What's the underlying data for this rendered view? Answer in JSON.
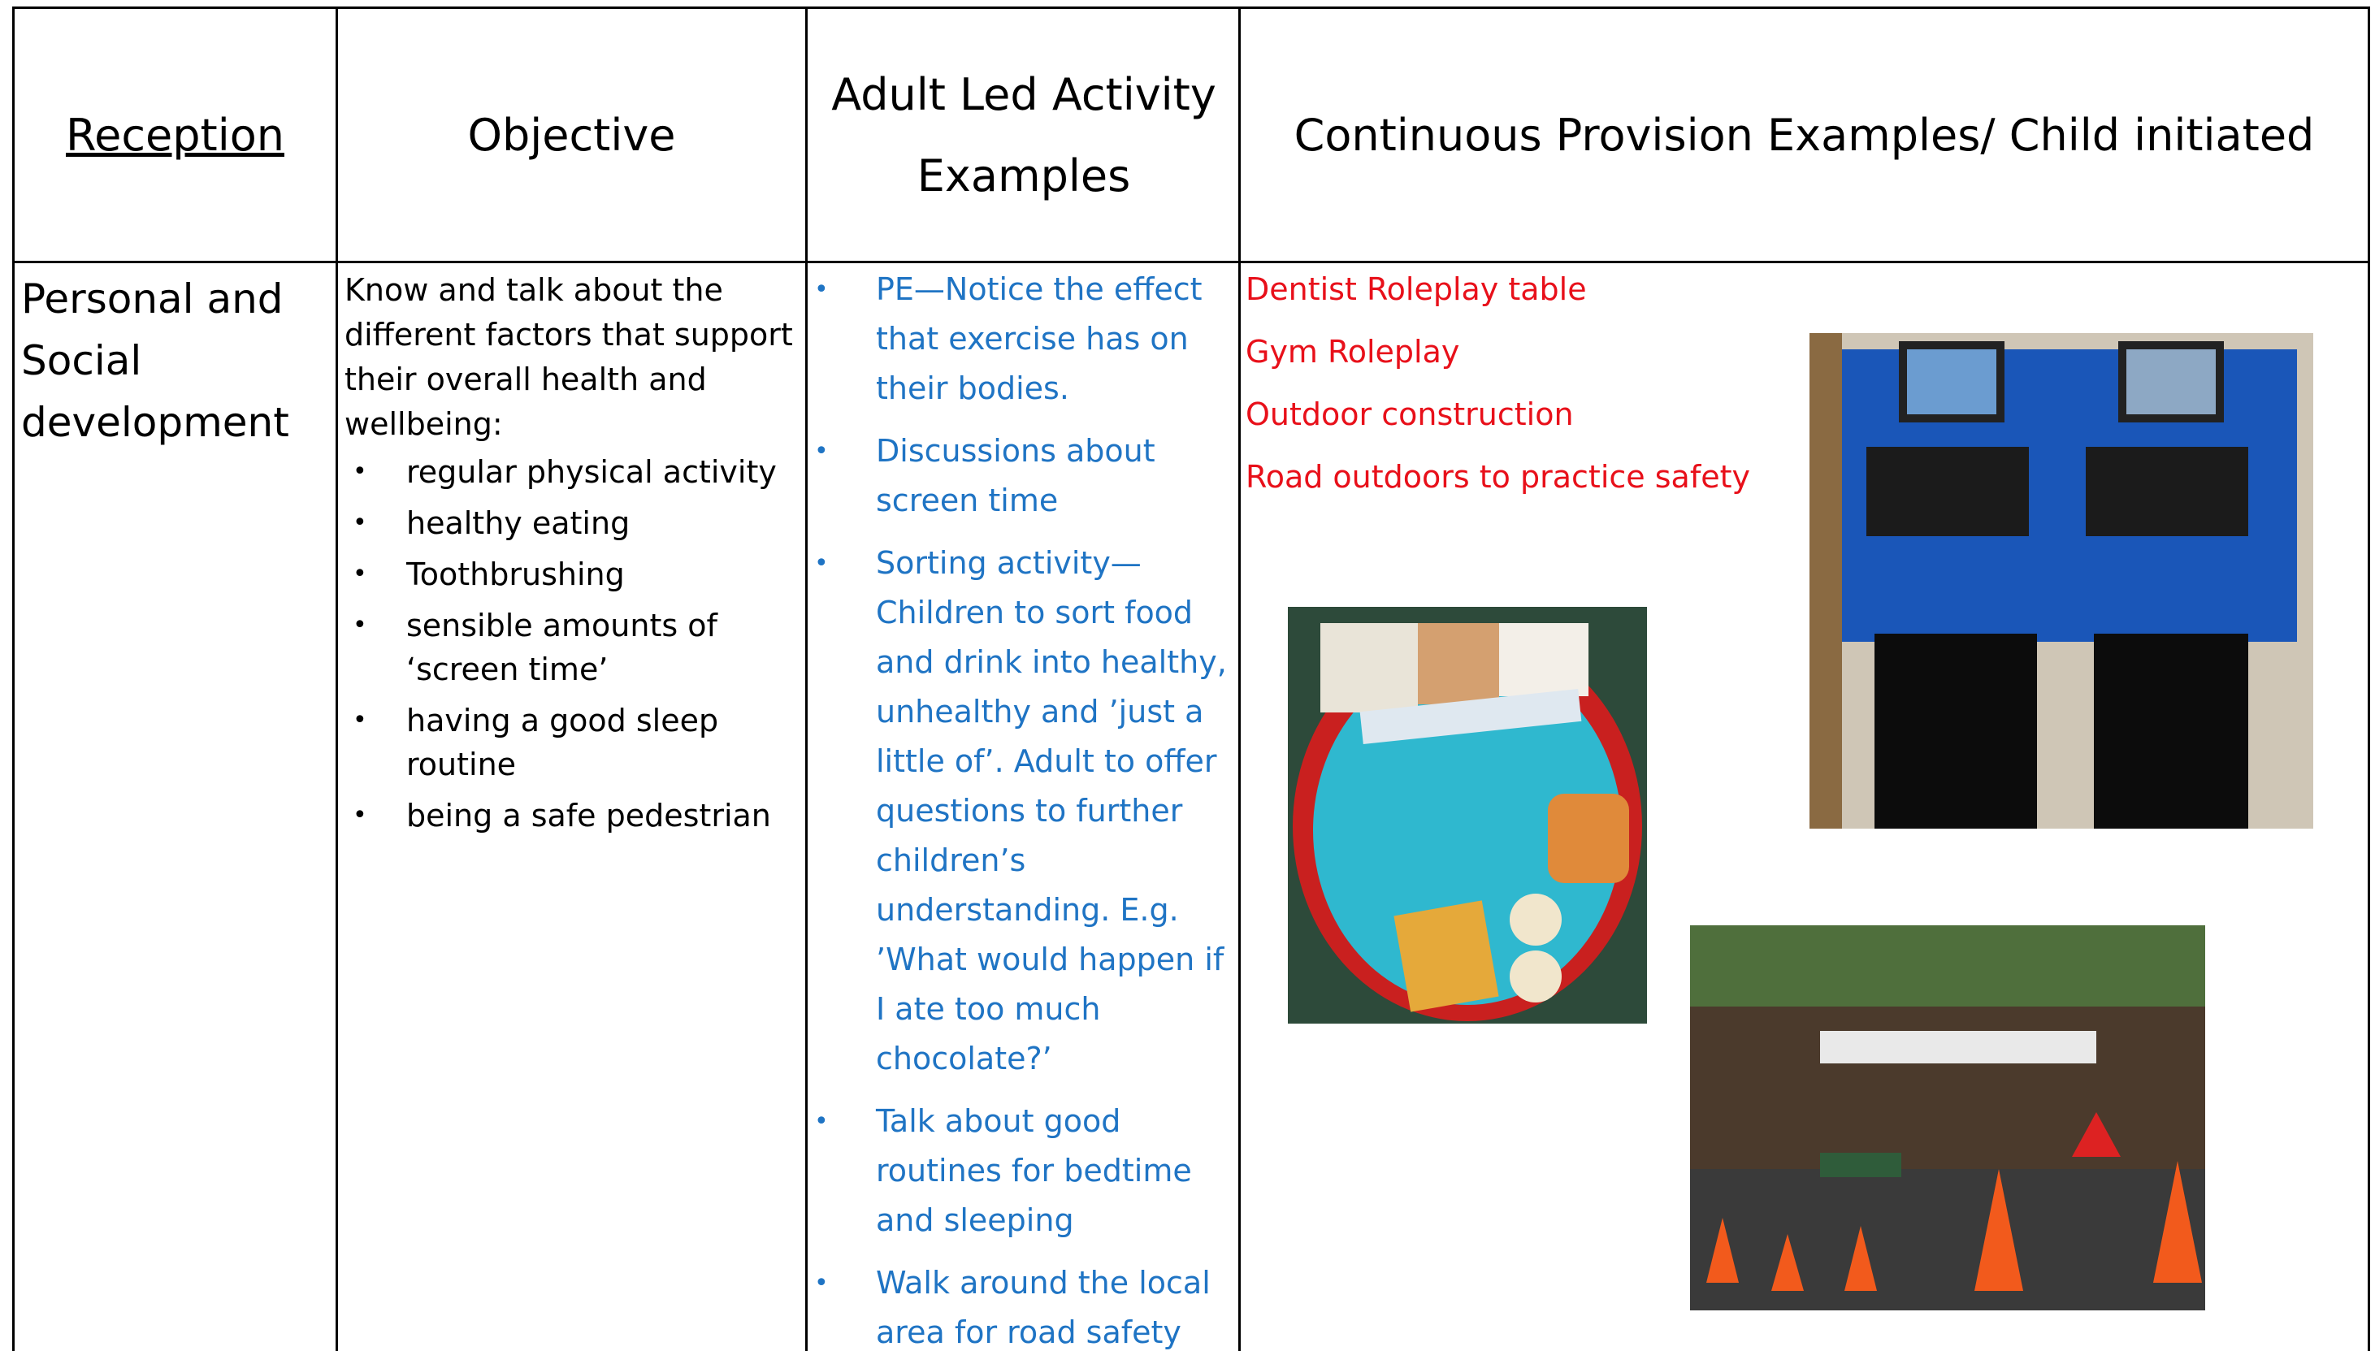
{
  "header": {
    "cells": [
      "Reception",
      "Objective",
      "Adult Led Activity Examples",
      "Continuous Provision Examples/ Child initiated"
    ]
  },
  "row": {
    "area": "Personal and Social development",
    "objective": {
      "intro": "Know and talk about the different factors that support their overall health and wellbeing:",
      "items": [
        "regular physical activity",
        "healthy eating",
        "Toothbrushing",
        "sensible amounts of ‘screen time’",
        "having a good sleep routine",
        "being a safe pedestrian"
      ]
    },
    "adult_led": [
      "PE—Notice the effect that exercise has on their bodies.",
      "Discussions about screen time",
      "Sorting activity—Children to sort food and drink into healthy, unhealthy and ’just a little of’. Adult to offer questions to further children’s understanding. E.g. ’What would happen if I ate too much chocolate?’",
      "Talk about good routines for bedtime and sleeping",
      "Walk around the local area for road safety"
    ],
    "continuous_provision": [
      "Dentist Roleplay table",
      "Gym Roleplay",
      "Outdoor construction",
      "Road outdoors to practice safety"
    ]
  }
}
